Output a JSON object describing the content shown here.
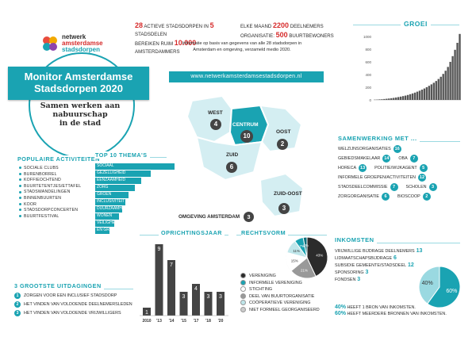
{
  "logo": {
    "line1": "netwerk",
    "line2": "amsterdamse",
    "line3": "stadsdorpen"
  },
  "badge": {
    "title1": "Monitor Amsterdamse",
    "title2": "Stadsdorpen 2020",
    "sub1": "Samen werken aan",
    "sub2": "nabuurschap",
    "sub3": "in de stad"
  },
  "stats": {
    "left_n1": "28",
    "left_t1": " ACTIEVE STADSDORPEN IN ",
    "left_n2": "5",
    "left_t2": " STADSDELEN",
    "left_t3": "BEREIKEN RUIM ",
    "left_n3": "10.000",
    "left_t4": " AMSTERDAMMERS",
    "right_t1": "ELKE MAAND ",
    "right_n1": "2200",
    "right_t2": " DEELNEMERS",
    "right_t3": "ORGANISATIE: ",
    "right_n2": "500",
    "right_t4": " BUURTBEWONERS",
    "info1": "Informatie op basis van gegevens van alle 28 stadsdorpen in",
    "info2": "Amsterdam en omgeving, verzameld medio 2020."
  },
  "url": "www.netwerkamsterdamsestadsdorpen.nl",
  "map": {
    "regions": [
      {
        "name": "WEST",
        "count": "4"
      },
      {
        "name": "CENTRUM",
        "count": "10"
      },
      {
        "name": "OOST",
        "count": "2"
      },
      {
        "name": "ZUID",
        "count": "6"
      },
      {
        "name": "ZUID-OOST",
        "count": "3"
      }
    ],
    "omgeving_label": "OMGEVING AMSTERDAM",
    "omgeving_count": "3"
  },
  "groei": {
    "title": "GROEI",
    "ticks": [
      "1000",
      "800",
      "600",
      "400",
      "200",
      "0"
    ],
    "values": [
      3,
      5,
      8,
      10,
      14,
      18,
      22,
      27,
      32,
      38,
      45,
      52,
      60,
      68,
      78,
      90,
      102,
      115,
      130,
      145,
      162,
      180,
      200,
      222,
      245,
      270,
      298,
      330,
      365,
      410,
      460,
      520,
      600,
      690,
      790,
      900,
      1040
    ]
  },
  "populaire": {
    "title": "POPULAIRE ACTIVITEITEN",
    "items": [
      "SOCIALE CLUBS",
      "BURENBORREL",
      "KOFFIEOCHTEND",
      "BUURTETENTJES/ETTAFEL",
      "STADSWANDELINGEN",
      "BINNENBUURTEN",
      "KOOR",
      "STADSDORPCONCERTEN",
      "BUURTFESTIVAL"
    ]
  },
  "themas": {
    "title": "TOP 10 THEMA'S",
    "items": [
      {
        "label": "SOCIAAL",
        "value": 100
      },
      {
        "label": "GEZELLIGHEID",
        "value": 70
      },
      {
        "label": "EENZAAMHEID",
        "value": 58
      },
      {
        "label": "ZORG",
        "value": 50
      },
      {
        "label": "GROEN",
        "value": 42
      },
      {
        "label": "INCLUSIVITEIT",
        "value": 38
      },
      {
        "label": "DUURZAAMHEID",
        "value": 34
      },
      {
        "label": "WONEN",
        "value": 30
      },
      {
        "label": "VEILIGHEID",
        "value": 24
      },
      {
        "label": "EN GROEN",
        "value": 18
      }
    ]
  },
  "samenwerking": {
    "title": "SAMENWERKING MET ...",
    "items": [
      {
        "label": "WELZIJNSORGANISATIES",
        "n": "16"
      },
      {
        "label": "GEBIEDSMAKELAAR",
        "n": "14"
      },
      {
        "label": "OBA",
        "n": "7"
      },
      {
        "label": "HORECA",
        "n": "13"
      },
      {
        "label": "POLITIE/WIJKAGENT",
        "n": "5"
      },
      {
        "label": "INFORMELE GROEPEN/ACTIVITEITEN",
        "n": "12"
      },
      {
        "label": "STADSDEELCOMMISSIE",
        "n": "7"
      },
      {
        "label": "SCHOLEN",
        "n": "3"
      },
      {
        "label": "ZORGORGANISATIE",
        "n": "6"
      },
      {
        "label": "BIOSCOOP",
        "n": "2"
      }
    ]
  },
  "uitdagingen": {
    "title": "3 GROOTSTE UITDAGINGEN",
    "items": [
      {
        "n": "1",
        "label": "ZORGEN VOOR EEN INCLUSIEF STADSDORP"
      },
      {
        "n": "2",
        "label": "HET VINDEN VAN VOLDOENDE DEELNEMERSLEDEN"
      },
      {
        "n": "3",
        "label": "HET VINDEN VAN VOLDOENDE VRIJWILLIGERS"
      }
    ]
  },
  "oprichting": {
    "title": "OPRICHTINGSJAAR",
    "years": [
      "2010",
      "'13",
      "'14",
      "'15",
      "'17",
      "'18",
      "'20"
    ],
    "values": [
      1,
      9,
      7,
      3,
      4,
      3,
      3
    ],
    "labels": [
      "1",
      "9",
      "7",
      "3",
      "4",
      "3",
      "3"
    ]
  },
  "rechtsvorm": {
    "title": "RECHTSVORM",
    "slices": [
      {
        "label": "VERENIGING",
        "pct": 43,
        "text": "43%",
        "color": "#2b2b2b"
      },
      {
        "label": "INFORMELE VERENIGING",
        "pct": 21,
        "text": "21%",
        "color": "#999999"
      },
      {
        "label": "STICHTING",
        "pct": 15,
        "text": "15%",
        "color": "#ffffff"
      },
      {
        "label": "DEEL VAN BUURTORGANISATIE",
        "pct": 11,
        "text": "11%",
        "color": "#bfe6ea"
      },
      {
        "label": "COÖPERATIEVE VERENIGING",
        "pct": 7,
        "text": "7%",
        "color": "#1aa3b2"
      },
      {
        "label": "NIET FORMEEL GEORGANISEERD",
        "pct": 3,
        "text": "3%",
        "color": "#0d6f7c"
      }
    ],
    "legend_colors": [
      "#2b2b2b",
      "#1aa3b2",
      "#ffffff",
      "#999999",
      "#bfe6ea",
      "#cccccc"
    ]
  },
  "inkomsten": {
    "title": "INKOMSTEN",
    "items": [
      {
        "label": "VRIJWILLIGE BIJDRAGE DEELNEMERS",
        "n": "13"
      },
      {
        "label": "LIDMAATSCHAPSBIJDRAGE",
        "n": "6"
      },
      {
        "label": "SUBSIDIE GEMEENTE/STADSDEEL",
        "n": "12"
      },
      {
        "label": "SPONSORING",
        "n": "3"
      },
      {
        "label": "FONDSEN",
        "n": "3"
      }
    ],
    "pie": [
      {
        "text": "60%",
        "pct": 60,
        "color": "#1aa3b2"
      },
      {
        "text": "40%",
        "pct": 40,
        "color": "#9ad9e1"
      }
    ],
    "note1_pct": "40%",
    "note1": " HEEFT 1 BRON VAN INKOMSTEN.",
    "note2_pct": "60%",
    "note2": " HEEFT MEERDERE BRONNEN VAN INKOMSTEN."
  }
}
